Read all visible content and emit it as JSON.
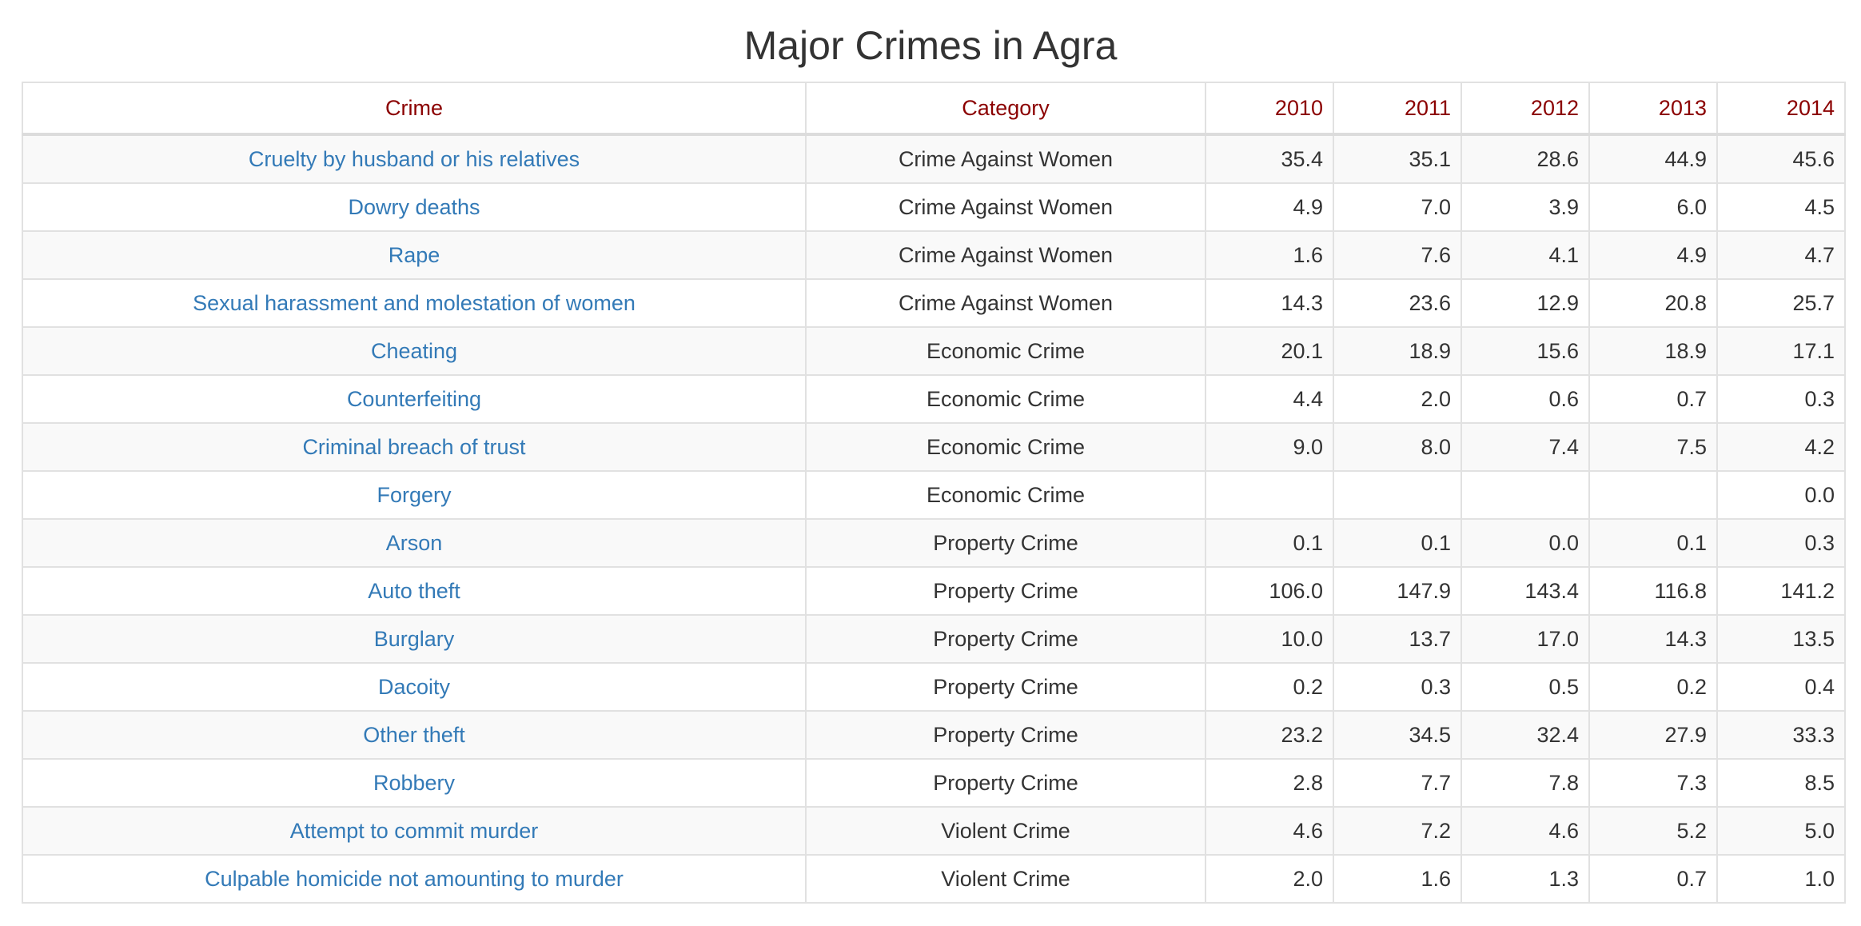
{
  "title": "Major Crimes in Agra",
  "colors": {
    "header_text": "#8b0000",
    "link": "#337ab7",
    "body_text": "#333333",
    "stripe": "#f9f9f9",
    "border": "#e1e1e1"
  },
  "table": {
    "headers": [
      "Crime",
      "Category",
      "2010",
      "2011",
      "2012",
      "2013",
      "2014"
    ],
    "rows": [
      {
        "crime": "Cruelty by husband or his relatives",
        "category": "Crime Against Women",
        "values": [
          "35.4",
          "35.1",
          "28.6",
          "44.9",
          "45.6"
        ]
      },
      {
        "crime": "Dowry deaths",
        "category": "Crime Against Women",
        "values": [
          "4.9",
          "7.0",
          "3.9",
          "6.0",
          "4.5"
        ]
      },
      {
        "crime": "Rape",
        "category": "Crime Against Women",
        "values": [
          "1.6",
          "7.6",
          "4.1",
          "4.9",
          "4.7"
        ]
      },
      {
        "crime": "Sexual harassment and molestation of women",
        "category": "Crime Against Women",
        "values": [
          "14.3",
          "23.6",
          "12.9",
          "20.8",
          "25.7"
        ]
      },
      {
        "crime": "Cheating",
        "category": "Economic Crime",
        "values": [
          "20.1",
          "18.9",
          "15.6",
          "18.9",
          "17.1"
        ]
      },
      {
        "crime": "Counterfeiting",
        "category": "Economic Crime",
        "values": [
          "4.4",
          "2.0",
          "0.6",
          "0.7",
          "0.3"
        ]
      },
      {
        "crime": "Criminal breach of trust",
        "category": "Economic Crime",
        "values": [
          "9.0",
          "8.0",
          "7.4",
          "7.5",
          "4.2"
        ]
      },
      {
        "crime": "Forgery",
        "category": "Economic Crime",
        "values": [
          "",
          "",
          "",
          "",
          "0.0"
        ]
      },
      {
        "crime": "Arson",
        "category": "Property Crime",
        "values": [
          "0.1",
          "0.1",
          "0.0",
          "0.1",
          "0.3"
        ]
      },
      {
        "crime": "Auto theft",
        "category": "Property Crime",
        "values": [
          "106.0",
          "147.9",
          "143.4",
          "116.8",
          "141.2"
        ]
      },
      {
        "crime": "Burglary",
        "category": "Property Crime",
        "values": [
          "10.0",
          "13.7",
          "17.0",
          "14.3",
          "13.5"
        ]
      },
      {
        "crime": "Dacoity",
        "category": "Property Crime",
        "values": [
          "0.2",
          "0.3",
          "0.5",
          "0.2",
          "0.4"
        ]
      },
      {
        "crime": "Other theft",
        "category": "Property Crime",
        "values": [
          "23.2",
          "34.5",
          "32.4",
          "27.9",
          "33.3"
        ]
      },
      {
        "crime": "Robbery",
        "category": "Property Crime",
        "values": [
          "2.8",
          "7.7",
          "7.8",
          "7.3",
          "8.5"
        ]
      },
      {
        "crime": "Attempt to commit murder",
        "category": "Violent Crime",
        "values": [
          "4.6",
          "7.2",
          "4.6",
          "5.2",
          "5.0"
        ]
      },
      {
        "crime": "Culpable homicide not amounting to murder",
        "category": "Violent Crime",
        "values": [
          "2.0",
          "1.6",
          "1.3",
          "0.7",
          "1.0"
        ]
      }
    ]
  }
}
